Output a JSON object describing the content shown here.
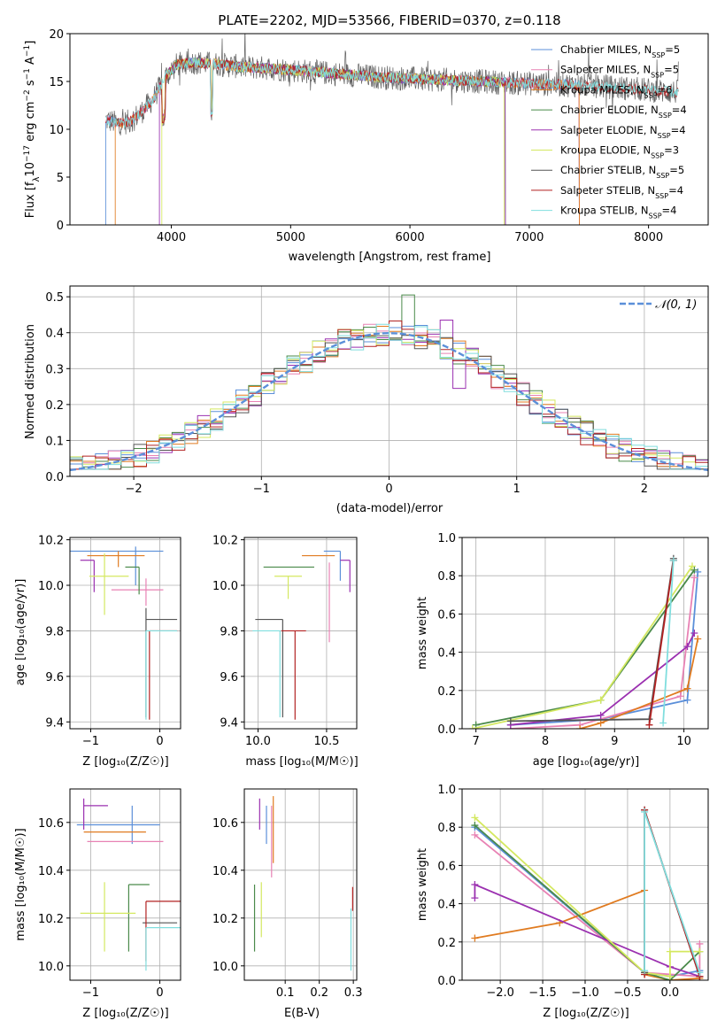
{
  "colors": {
    "miles_ch": "#5b8fd9",
    "miles_sa": "#e882b4",
    "miles_kr": "#e07b20",
    "elodie_ch": "#4a8a4a",
    "elodie_sa": "#9b30b0",
    "elodie_kr": "#d4e860",
    "stelib_ch": "#555555",
    "stelib_sa": "#b22222",
    "stelib_kr": "#80dede",
    "normal": "#5b8fd9"
  },
  "models": [
    {
      "key": "miles_ch",
      "label": "Chabrier MILES, N",
      "n": "5"
    },
    {
      "key": "miles_sa",
      "label": "Salpeter MILES, N",
      "n": "5"
    },
    {
      "key": "miles_kr",
      "label": "Kroupa MILES, N",
      "n": "6"
    },
    {
      "key": "elodie_ch",
      "label": "Chabrier ELODIE, N",
      "n": "4"
    },
    {
      "key": "elodie_sa",
      "label": "Salpeter ELODIE, N",
      "n": "4"
    },
    {
      "key": "elodie_kr",
      "label": "Kroupa ELODIE, N",
      "n": "3"
    },
    {
      "key": "stelib_ch",
      "label": "Chabrier STELIB, N",
      "n": "5"
    },
    {
      "key": "stelib_sa",
      "label": "Salpeter STELIB, N",
      "n": "4"
    },
    {
      "key": "stelib_kr",
      "label": "Kroupa STELIB, N",
      "n": "4"
    }
  ],
  "chart_data": [
    {
      "id": "spectrum",
      "type": "line",
      "title": "PLATE=2202, MJD=53566, FIBERID=0370, z=0.118",
      "xlabel": "wavelength [Angstrom, rest frame]",
      "ylabel_parts": [
        "Flux [f",
        "λ",
        "10",
        "−17",
        " erg cm",
        "−2",
        " s",
        "−1",
        " A",
        "−1",
        "]"
      ],
      "xlim": [
        3150,
        8500
      ],
      "ylim": [
        0,
        20
      ],
      "xticks": [
        4000,
        5000,
        6000,
        7000,
        8000
      ],
      "yticks": [
        0,
        5,
        10,
        15,
        20
      ],
      "legend_position": "upper right",
      "legend_sub": "SSP",
      "continuum": {
        "x": [
          3450,
          3550,
          3650,
          3750,
          3850,
          3950,
          4050,
          4200,
          4400,
          4600,
          4800,
          5000,
          5200,
          5400,
          5600,
          5800,
          6000,
          6200,
          6400,
          6600,
          6800,
          7000,
          7200,
          7400,
          7600,
          7800,
          8000,
          8200
        ],
        "y": [
          11.0,
          10.6,
          10.8,
          11.8,
          13.2,
          15.5,
          16.8,
          17.0,
          16.8,
          16.5,
          16.4,
          16.2,
          16.0,
          15.8,
          15.6,
          15.4,
          15.3,
          15.2,
          15.1,
          15.0,
          14.9,
          14.8,
          14.7,
          14.6,
          14.5,
          14.3,
          14.1,
          13.9
        ]
      }
    },
    {
      "id": "residuals",
      "type": "histogram",
      "xlabel": "(data-model)/error",
      "ylabel": "Normed distribution",
      "xlim": [
        -2.5,
        2.5
      ],
      "ylim": [
        0,
        0.53
      ],
      "xticks": [
        -2,
        -1,
        0,
        1,
        2
      ],
      "yticks": [
        0.0,
        0.1,
        0.2,
        0.3,
        0.4,
        0.5
      ],
      "tick_labels_x": [
        "−2",
        "−1",
        "0",
        "1",
        "2"
      ],
      "tick_labels_y": [
        "0.0",
        "0.1",
        "0.2",
        "0.3",
        "0.4",
        "0.5"
      ],
      "bin_width": 0.1,
      "legend_label": "𝒩(0, 1)",
      "legend_position": "upper right"
    },
    {
      "id": "age_vs_Z",
      "type": "errorbar",
      "xlabel": "Z [log₁₀(Z/Z☉)]",
      "ylabel": "age  [log₁₀(age/yr)]",
      "xlim": [
        -1.3,
        0.3
      ],
      "ylim": [
        9.37,
        10.21
      ],
      "xticks": [
        -1,
        0
      ],
      "tick_labels_x": [
        "−1",
        "0"
      ],
      "yticks": [
        9.4,
        9.6,
        9.8,
        10.0,
        10.2
      ],
      "tick_labels_y": [
        "9.4",
        "9.6",
        "9.8",
        "10.0",
        "10.2"
      ],
      "points": [
        {
          "c": "miles_ch",
          "x": -0.35,
          "xe": [
            1.15,
            0.4
          ],
          "y": 10.15,
          "ye": [
            0.15,
            0.02
          ]
        },
        {
          "c": "miles_sa",
          "x": -0.2,
          "xe": [
            0.5,
            0.25
          ],
          "y": 9.98,
          "ye": [
            0.07,
            0.05
          ]
        },
        {
          "c": "miles_kr",
          "x": -0.6,
          "xe": [
            0.45,
            0.38
          ],
          "y": 10.13,
          "ye": [
            0.05,
            0.02
          ]
        },
        {
          "c": "elodie_ch",
          "x": -0.3,
          "xe": [
            0.2,
            0.0
          ],
          "y": 10.08,
          "ye": [
            0.12,
            0.0
          ]
        },
        {
          "c": "elodie_sa",
          "x": -0.95,
          "xe": [
            0.2,
            0.0
          ],
          "y": 10.11,
          "ye": [
            0.14,
            0.0
          ]
        },
        {
          "c": "elodie_kr",
          "x": -0.8,
          "xe": [
            0.22,
            0.35
          ],
          "y": 10.04,
          "ye": [
            0.17,
            0.1
          ]
        },
        {
          "c": "stelib_ch",
          "x": -0.2,
          "xe": [
            0.0,
            0.45
          ],
          "y": 9.85,
          "ye": [
            0.43,
            0.05
          ]
        },
        {
          "c": "stelib_sa",
          "x": -0.15,
          "xe": [
            0.0,
            0.4
          ],
          "y": 9.8,
          "ye": [
            0.39,
            0.0
          ]
        },
        {
          "c": "stelib_kr",
          "x": -0.2,
          "xe": [
            0.0,
            0.45
          ],
          "y": 9.8,
          "ye": [
            0.39,
            0.0
          ]
        }
      ]
    },
    {
      "id": "age_vs_mass",
      "type": "errorbar",
      "xlabel": "mass [log₁₀(M/M☉)]",
      "xlim": [
        9.9,
        10.72
      ],
      "ylim": [
        9.37,
        10.21
      ],
      "xticks": [
        10.0,
        10.5
      ],
      "tick_labels_x": [
        "10.0",
        "10.5"
      ],
      "yticks": [
        9.4,
        9.6,
        9.8,
        10.0,
        10.2
      ],
      "tick_labels_y": [
        "9.4",
        "9.6",
        "9.8",
        "10.0",
        "10.2"
      ],
      "points": [
        {
          "c": "miles_ch",
          "x": 10.6,
          "xe": [
            0.12,
            0.0
          ],
          "y": 10.15,
          "ye": [
            0.13,
            0.0
          ]
        },
        {
          "c": "miles_sa",
          "x": 10.52,
          "xe": [
            0.0,
            0.0
          ],
          "y": 10.1,
          "ye": [
            0.35,
            0.0
          ]
        },
        {
          "c": "miles_kr",
          "x": 10.56,
          "xe": [
            0.24,
            0.0
          ],
          "y": 10.13,
          "ye": [
            0.0,
            0.0
          ]
        },
        {
          "c": "elodie_ch",
          "x": 10.26,
          "xe": [
            0.22,
            0.15
          ],
          "y": 10.08,
          "ye": [
            0.0,
            0.0
          ]
        },
        {
          "c": "elodie_sa",
          "x": 10.67,
          "xe": [
            0.07,
            0.0
          ],
          "y": 10.11,
          "ye": [
            0.14,
            0.0
          ]
        },
        {
          "c": "elodie_kr",
          "x": 10.22,
          "xe": [
            0.1,
            0.1
          ],
          "y": 10.04,
          "ye": [
            0.1,
            0.0
          ]
        },
        {
          "c": "stelib_ch",
          "x": 10.18,
          "xe": [
            0.2,
            0.0
          ],
          "y": 9.85,
          "ye": [
            0.43,
            0.0
          ]
        },
        {
          "c": "stelib_sa",
          "x": 10.27,
          "xe": [
            0.1,
            0.08
          ],
          "y": 9.8,
          "ye": [
            0.39,
            0.0
          ]
        },
        {
          "c": "stelib_kr",
          "x": 10.16,
          "xe": [
            0.2,
            0.0
          ],
          "y": 9.8,
          "ye": [
            0.38,
            0.0
          ]
        }
      ]
    },
    {
      "id": "weight_vs_age",
      "type": "line",
      "xlabel": "age  [log₁₀(age/yr)]",
      "ylabel": "mass weight",
      "xlim": [
        6.8,
        10.35
      ],
      "ylim": [
        0,
        1.0
      ],
      "xticks": [
        7,
        8,
        9,
        10
      ],
      "tick_labels_x": [
        "7",
        "8",
        "9",
        "10"
      ],
      "yticks": [
        0.0,
        0.2,
        0.4,
        0.6,
        0.8,
        1.0
      ],
      "tick_labels_y": [
        "0.0",
        "0.2",
        "0.4",
        "0.6",
        "0.8",
        "1.0"
      ],
      "series": [
        {
          "c": "miles_ch",
          "x": [
            7.5,
            8.8,
            10.05,
            10.2
          ],
          "y": [
            0.02,
            0.05,
            0.15,
            0.82
          ]
        },
        {
          "c": "miles_sa",
          "x": [
            7.5,
            8.5,
            9.95,
            10.15
          ],
          "y": [
            0.0,
            0.02,
            0.17,
            0.79
          ]
        },
        {
          "c": "miles_kr",
          "x": [
            8.5,
            8.8,
            10.05,
            10.2
          ],
          "y": [
            0.0,
            0.03,
            0.21,
            0.47
          ]
        },
        {
          "c": "elodie_ch",
          "x": [
            7.0,
            8.8,
            10.15
          ],
          "y": [
            0.02,
            0.15,
            0.83
          ]
        },
        {
          "c": "elodie_sa",
          "x": [
            7.5,
            8.8,
            10.05,
            10.15
          ],
          "y": [
            0.02,
            0.07,
            0.43,
            0.5
          ]
        },
        {
          "c": "elodie_kr",
          "x": [
            6.95,
            8.8,
            10.12
          ],
          "y": [
            0.0,
            0.15,
            0.85
          ]
        },
        {
          "c": "stelib_ch",
          "x": [
            7.5,
            9.5,
            9.85
          ],
          "y": [
            0.04,
            0.05,
            0.89
          ]
        },
        {
          "c": "stelib_sa",
          "x": [
            9.5,
            9.85
          ],
          "y": [
            0.02,
            0.88
          ]
        },
        {
          "c": "stelib_kr",
          "x": [
            9.7,
            9.85
          ],
          "y": [
            0.03,
            0.88
          ]
        }
      ]
    },
    {
      "id": "mass_vs_Z",
      "type": "errorbar",
      "xlabel": "Z [log₁₀(Z/Z☉)]",
      "ylabel": "mass [log₁₀(M/M☉)]",
      "xlim": [
        -1.3,
        0.3
      ],
      "ylim": [
        9.94,
        10.74
      ],
      "xticks": [
        -1,
        0
      ],
      "tick_labels_x": [
        "−1",
        "0"
      ],
      "yticks": [
        10.0,
        10.2,
        10.4,
        10.6
      ],
      "tick_labels_y": [
        "10.0",
        "10.2",
        "10.4",
        "10.6"
      ],
      "points": [
        {
          "c": "miles_ch",
          "x": -0.4,
          "xe": [
            0.8,
            0.4
          ],
          "y": 10.59,
          "ye": [
            0.08,
            0.08
          ]
        },
        {
          "c": "miles_sa",
          "x": -0.55,
          "xe": [
            0.5,
            0.6
          ],
          "y": 10.52,
          "ye": [
            0.0,
            0.0
          ]
        },
        {
          "c": "miles_kr",
          "x": -0.6,
          "xe": [
            0.5,
            0.4
          ],
          "y": 10.56,
          "ye": [
            0.0,
            0.0
          ]
        },
        {
          "c": "elodie_ch",
          "x": -0.45,
          "xe": [
            0.0,
            0.3
          ],
          "y": 10.34,
          "ye": [
            0.28,
            0.0
          ]
        },
        {
          "c": "elodie_sa",
          "x": -1.1,
          "xe": [
            0.0,
            0.35
          ],
          "y": 10.67,
          "ye": [
            0.1,
            0.03
          ]
        },
        {
          "c": "elodie_kr",
          "x": -0.8,
          "xe": [
            0.35,
            0.45
          ],
          "y": 10.22,
          "ye": [
            0.16,
            0.13
          ]
        },
        {
          "c": "stelib_ch",
          "x": -0.25,
          "xe": [
            0.0,
            0.5
          ],
          "y": 10.18,
          "ye": [
            0.0,
            0.0
          ]
        },
        {
          "c": "stelib_sa",
          "x": -0.2,
          "xe": [
            0.0,
            0.5
          ],
          "y": 10.27,
          "ye": [
            0.25,
            0.0
          ]
        },
        {
          "c": "stelib_kr",
          "x": -0.2,
          "xe": [
            0.0,
            0.5
          ],
          "y": 10.16,
          "ye": [
            0.18,
            0.0
          ]
        }
      ]
    },
    {
      "id": "mass_vs_ebv",
      "type": "errorbar",
      "xlabel": "E(B-V)",
      "xlim": [
        -0.02,
        0.31
      ],
      "ylim": [
        9.94,
        10.74
      ],
      "xticks": [
        0.1,
        0.2,
        0.3
      ],
      "tick_labels_x": [
        "0.1",
        "0.2",
        "0.3"
      ],
      "yticks": [
        10.0,
        10.2,
        10.4,
        10.6
      ],
      "tick_labels_y": [
        "10.0",
        "10.2",
        "10.4",
        "10.6"
      ],
      "points": [
        {
          "c": "miles_ch",
          "x": 0.045,
          "xe": [
            0,
            0
          ],
          "y": 10.59,
          "ye": [
            0.08,
            0.08
          ]
        },
        {
          "c": "miles_sa",
          "x": 0.06,
          "xe": [
            0,
            0
          ],
          "y": 10.52,
          "ye": [
            0.15,
            0.15
          ]
        },
        {
          "c": "miles_kr",
          "x": 0.065,
          "xe": [
            0,
            0
          ],
          "y": 10.56,
          "ye": [
            0.13,
            0.15
          ]
        },
        {
          "c": "elodie_ch",
          "x": 0.01,
          "xe": [
            0,
            0
          ],
          "y": 10.34,
          "ye": [
            0.28,
            0.0
          ]
        },
        {
          "c": "elodie_sa",
          "x": 0.025,
          "xe": [
            0,
            0
          ],
          "y": 10.67,
          "ye": [
            0.1,
            0.03
          ]
        },
        {
          "c": "elodie_kr",
          "x": 0.03,
          "xe": [
            0,
            0
          ],
          "y": 10.22,
          "ye": [
            0.1,
            0.13
          ]
        },
        {
          "c": "stelib_ch",
          "x": 0.295,
          "xe": [
            0,
            0
          ],
          "y": 10.18,
          "ye": [
            0.0,
            0.0
          ]
        },
        {
          "c": "stelib_sa",
          "x": 0.298,
          "xe": [
            0,
            0
          ],
          "y": 10.27,
          "ye": [
            0.04,
            0.06
          ]
        },
        {
          "c": "stelib_kr",
          "x": 0.293,
          "xe": [
            0,
            0
          ],
          "y": 10.16,
          "ye": [
            0.18,
            0.08
          ]
        }
      ]
    },
    {
      "id": "weight_vs_Z",
      "type": "line",
      "xlabel": "Z [log₁₀(Z/Z☉)]",
      "ylabel": "mass weight",
      "xlim": [
        -2.45,
        0.45
      ],
      "ylim": [
        0,
        1.0
      ],
      "xticks": [
        -2.0,
        -1.5,
        -1.0,
        -0.5,
        0.0
      ],
      "tick_labels_x": [
        "−2.0",
        "−1.5",
        "−1.0",
        "−0.5",
        "0.0"
      ],
      "yticks": [
        0.0,
        0.2,
        0.4,
        0.6,
        0.8,
        1.0
      ],
      "tick_labels_y": [
        "0.0",
        "0.2",
        "0.4",
        "0.6",
        "0.8",
        "1.0"
      ],
      "series": [
        {
          "c": "miles_ch",
          "x": [
            -2.3,
            -0.3,
            -0.3,
            0.0,
            0.35
          ],
          "y": [
            0.8,
            0.04,
            0.04,
            0.02,
            0.05
          ]
        },
        {
          "c": "miles_sa",
          "x": [
            -2.3,
            -0.3,
            0.35,
            0.35
          ],
          "y": [
            0.76,
            0.04,
            0.02,
            0.19
          ]
        },
        {
          "c": "miles_kr",
          "x": [
            -2.3,
            -1.3,
            -0.3,
            -0.3,
            0.0,
            0.35
          ],
          "y": [
            0.22,
            0.3,
            0.47,
            0.03,
            0.0,
            0.01
          ]
        },
        {
          "c": "elodie_ch",
          "x": [
            -2.3,
            -0.3,
            0.0,
            0.35
          ],
          "y": [
            0.81,
            0.04,
            0.0,
            0.15
          ]
        },
        {
          "c": "elodie_sa",
          "x": [
            -2.3,
            -2.3,
            0.0,
            0.35
          ],
          "y": [
            0.43,
            0.5,
            0.07,
            0.02
          ]
        },
        {
          "c": "elodie_kr",
          "x": [
            -2.3,
            -0.3,
            0.0,
            0.0,
            0.35
          ],
          "y": [
            0.85,
            0.04,
            0.02,
            0.15,
            0.15
          ]
        },
        {
          "c": "stelib_ch",
          "x": [
            -0.3,
            -0.3,
            0.35
          ],
          "y": [
            0.04,
            0.89,
            0.02
          ]
        },
        {
          "c": "stelib_sa",
          "x": [
            -0.3,
            -0.3,
            0.35
          ],
          "y": [
            0.03,
            0.89,
            0.02
          ]
        },
        {
          "c": "stelib_kr",
          "x": [
            -0.3,
            -0.3,
            0.35
          ],
          "y": [
            0.05,
            0.88,
            0.04
          ]
        }
      ]
    }
  ]
}
